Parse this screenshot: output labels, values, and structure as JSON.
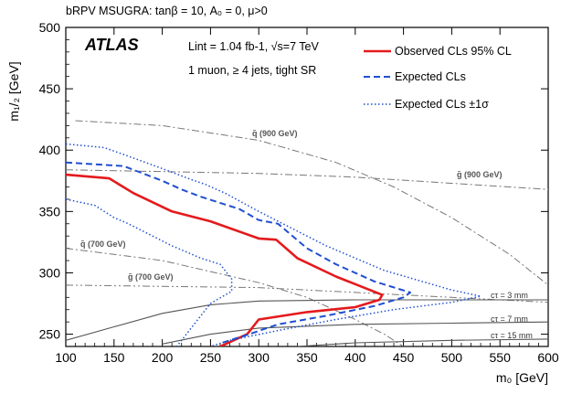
{
  "chart_data": {
    "type": "line",
    "title": "bRPV MSUGRA: tanβ = 10, A₀ = 0, μ>0",
    "xlabel": "m₀ [GeV]",
    "ylabel": "m₁/₂ [GeV]",
    "xlim": [
      100,
      600
    ],
    "ylim": [
      240,
      500
    ],
    "x_ticks": [
      100,
      150,
      200,
      250,
      300,
      350,
      400,
      450,
      500,
      550,
      600
    ],
    "y_ticks": [
      250,
      300,
      350,
      400,
      450,
      500
    ],
    "grid": false,
    "legend_position": "top-right",
    "experiment_label": "ATLAS",
    "lumi_text": "Lint = 1.04 fb-1, √s=7 TeV",
    "selection_text": "1 muon, ≥ 4 jets, tight SR",
    "series": [
      {
        "name": "Observed CLs 95% CL",
        "color": "#e41a1c",
        "style": "solid",
        "points": [
          [
            100,
            380
          ],
          [
            145,
            377
          ],
          [
            170,
            365
          ],
          [
            210,
            350
          ],
          [
            250,
            342
          ],
          [
            300,
            328
          ],
          [
            318,
            327
          ],
          [
            340,
            312
          ],
          [
            380,
            297
          ],
          [
            428,
            282
          ],
          [
            425,
            278
          ],
          [
            400,
            272
          ],
          [
            350,
            268
          ],
          [
            300,
            262
          ],
          [
            288,
            250
          ],
          [
            260,
            240
          ]
        ]
      },
      {
        "name": "Expected CLs",
        "color": "#1f4fd1",
        "style": "dashed",
        "points": [
          [
            100,
            390
          ],
          [
            160,
            387
          ],
          [
            200,
            375
          ],
          [
            220,
            368
          ],
          [
            240,
            362
          ],
          [
            280,
            352
          ],
          [
            300,
            343
          ],
          [
            320,
            340
          ],
          [
            350,
            320
          ],
          [
            380,
            307
          ],
          [
            420,
            293
          ],
          [
            457,
            284
          ],
          [
            450,
            280
          ],
          [
            420,
            273
          ],
          [
            370,
            265
          ],
          [
            320,
            258
          ],
          [
            290,
            250
          ],
          [
            262,
            243
          ]
        ]
      },
      {
        "name": "Expected CLs ±1σ",
        "color": "#1f4fd1",
        "style": "dotted",
        "points": [
          [
            100,
            405
          ],
          [
            140,
            402
          ],
          [
            165,
            395
          ],
          [
            200,
            385
          ],
          [
            230,
            376
          ],
          [
            245,
            372
          ],
          [
            265,
            365
          ],
          [
            300,
            350
          ],
          [
            340,
            334
          ],
          [
            370,
            322
          ],
          [
            400,
            312
          ],
          [
            430,
            302
          ],
          [
            500,
            286
          ],
          [
            530,
            281
          ],
          [
            500,
            276
          ],
          [
            440,
            270
          ],
          [
            380,
            262
          ],
          [
            320,
            253
          ],
          [
            270,
            245
          ],
          [
            250,
            240
          ]
        ],
        "points_inner": [
          [
            100,
            360
          ],
          [
            130,
            355
          ],
          [
            150,
            345
          ],
          [
            165,
            340
          ],
          [
            190,
            330
          ],
          [
            210,
            322
          ],
          [
            240,
            312
          ],
          [
            260,
            307
          ],
          [
            272,
            295
          ],
          [
            272,
            285
          ],
          [
            250,
            275
          ],
          [
            240,
            265
          ],
          [
            220,
            245
          ],
          [
            215,
            240
          ]
        ]
      }
    ],
    "reference_curves": [
      {
        "name": "q̃ (900 GeV)",
        "style": "dash-dot",
        "points": [
          [
            110,
            424
          ],
          [
            200,
            420
          ],
          [
            300,
            408
          ],
          [
            380,
            390
          ],
          [
            440,
            370
          ],
          [
            500,
            345
          ],
          [
            560,
            315
          ],
          [
            600,
            290
          ]
        ]
      },
      {
        "name": "g̃ (900 GeV)",
        "style": "dash-dot",
        "points": [
          [
            100,
            384
          ],
          [
            300,
            381
          ],
          [
            400,
            378
          ],
          [
            500,
            373
          ],
          [
            600,
            368
          ]
        ]
      },
      {
        "name": "q̃ (700 GeV)",
        "style": "dash-dot",
        "points": [
          [
            100,
            320
          ],
          [
            200,
            310
          ],
          [
            300,
            292
          ],
          [
            350,
            280
          ],
          [
            400,
            262
          ],
          [
            430,
            250
          ],
          [
            450,
            240
          ]
        ]
      },
      {
        "name": "g̃ (700 GeV)",
        "style": "dash-dot-dot",
        "points": [
          [
            100,
            290
          ],
          [
            300,
            288
          ],
          [
            400,
            284
          ],
          [
            500,
            280
          ],
          [
            600,
            276
          ]
        ]
      },
      {
        "name": "cτ = 3 mm",
        "style": "solid-grey",
        "points": [
          [
            100,
            245
          ],
          [
            150,
            256
          ],
          [
            200,
            267
          ],
          [
            250,
            274
          ],
          [
            300,
            277
          ],
          [
            400,
            278
          ],
          [
            500,
            278
          ],
          [
            600,
            278
          ]
        ]
      },
      {
        "name": "cτ = 7 mm",
        "style": "solid-grey",
        "points": [
          [
            200,
            242
          ],
          [
            250,
            250
          ],
          [
            300,
            255
          ],
          [
            400,
            258
          ],
          [
            500,
            259
          ],
          [
            600,
            260
          ]
        ]
      },
      {
        "name": "cτ = 15 mm",
        "style": "solid-grey",
        "points": [
          [
            340,
            240
          ],
          [
            400,
            243
          ],
          [
            500,
            245
          ],
          [
            600,
            246
          ]
        ]
      }
    ]
  }
}
